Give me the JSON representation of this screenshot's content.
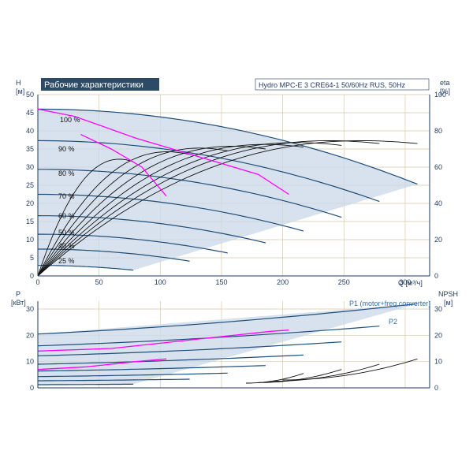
{
  "header": {
    "title": "Рабочие характеристики",
    "subtitle": "Hydro MPC-E 3 CRE64-1 50/60Hz RUS, 50Hz"
  },
  "colors": {
    "curve": "#1f4e79",
    "efficiency": "#111111",
    "npsh": "#111111",
    "highlight": "#ff00ff",
    "area": "#c9d8e8",
    "grid": "#d8c9a8",
    "axis": "#1f3a5f"
  },
  "chart_data": [
    {
      "type": "line",
      "name": "head-chart",
      "ylabel_left": "H",
      "ylabel_left_unit": "[м]",
      "ylabel_right": "eta",
      "ylabel_right_unit": "[%]",
      "xlabel": "Q [м³/ч]",
      "x_ticks": [
        "0",
        "50",
        "100",
        "150",
        "200",
        "250",
        "300"
      ],
      "y_ticks": [
        "0",
        "5",
        "10",
        "15",
        "20",
        "25",
        "30",
        "35",
        "40",
        "45",
        "50"
      ],
      "y2_ticks": [
        "0",
        "20",
        "40",
        "60",
        "80",
        "100"
      ],
      "xlim": [
        0,
        320
      ],
      "ylim": [
        0,
        50
      ],
      "y2lim": [
        0,
        100
      ],
      "grid": true,
      "speed_labels": [
        "100 %",
        "90 %",
        "80 %",
        "70 %",
        "60 %",
        "50 %",
        "40 %",
        "25 %"
      ],
      "speed_curves": [
        {
          "label": "100 %",
          "qmax": 310,
          "h0": 46
        },
        {
          "label": "90 %",
          "qmax": 279,
          "h0": 37.3
        },
        {
          "label": "80 %",
          "qmax": 248,
          "h0": 29.4
        },
        {
          "label": "70 %",
          "qmax": 217,
          "h0": 22.5
        },
        {
          "label": "60 %",
          "qmax": 186,
          "h0": 16.6
        },
        {
          "label": "50 %",
          "qmax": 155,
          "h0": 11.5
        },
        {
          "label": "40 %",
          "qmax": 124,
          "h0": 7.4
        },
        {
          "label": "25 %",
          "qmax": 78,
          "h0": 2.9
        }
      ],
      "highlight_curves": [
        {
          "points": [
            [
              0,
              46
            ],
            [
              30,
              44
            ],
            [
              80,
              38
            ],
            [
              140,
              32
            ],
            [
              180,
              28
            ],
            [
              205,
              22.5
            ]
          ]
        },
        {
          "points": [
            [
              35,
              39
            ],
            [
              60,
              35
            ],
            [
              85,
              30
            ],
            [
              105,
              22
            ]
          ]
        }
      ],
      "efficiency_curves": [
        {
          "qmax": 310,
          "eta_max": 73
        },
        {
          "qmax": 279,
          "eta_max": 73
        },
        {
          "qmax": 248,
          "eta_max": 72
        },
        {
          "qmax": 217,
          "eta_max": 71
        },
        {
          "qmax": 186,
          "eta_max": 70
        },
        {
          "qmax": 155,
          "eta_max": 69
        },
        {
          "qmax": 124,
          "eta_max": 67
        },
        {
          "qmax": 78,
          "eta_max": 63
        }
      ]
    },
    {
      "type": "line",
      "name": "power-chart",
      "ylabel_left": "P",
      "ylabel_left_unit": "[кВт]",
      "ylabel_right": "NPSH",
      "ylabel_right_unit": "[м]",
      "y_ticks": [
        "0",
        "10",
        "20",
        "30"
      ],
      "y2_ticks": [
        "0",
        "10",
        "20",
        "30"
      ],
      "xlim": [
        0,
        320
      ],
      "ylim": [
        0,
        33
      ],
      "y2lim": [
        0,
        33
      ],
      "grid": true,
      "legend": [
        "P1 (motor+freq.converter)",
        "P2"
      ],
      "p1_curves": [
        {
          "qmax": 310,
          "p0": 20.5,
          "p1": 32
        },
        {
          "qmax": 279,
          "p0": 16.0,
          "p1": 23.5
        },
        {
          "qmax": 248,
          "p0": 12.2,
          "p1": 17.5
        },
        {
          "qmax": 217,
          "p0": 9.0,
          "p1": 12.5
        },
        {
          "qmax": 186,
          "p0": 6.4,
          "p1": 8.5
        },
        {
          "qmax": 155,
          "p0": 4.3,
          "p1": 5.6
        },
        {
          "qmax": 124,
          "p0": 2.7,
          "p1": 3.3
        },
        {
          "qmax": 78,
          "p0": 1.2,
          "p1": 1.4
        }
      ],
      "npsh_curves": [
        {
          "q0": 200,
          "q1": 310,
          "n0": 3,
          "n1": 11
        },
        {
          "q0": 190,
          "q1": 279,
          "n0": 2.5,
          "n1": 9
        },
        {
          "q0": 180,
          "q1": 248,
          "n0": 2,
          "n1": 7
        },
        {
          "q0": 170,
          "q1": 217,
          "n0": 1.8,
          "n1": 5.5
        }
      ],
      "highlight_curves": [
        {
          "points": [
            [
              0,
              14
            ],
            [
              60,
              15
            ],
            [
              120,
              18
            ],
            [
              190,
              21.5
            ],
            [
              205,
              22
            ]
          ]
        },
        {
          "points": [
            [
              0,
              7
            ],
            [
              40,
              8
            ],
            [
              80,
              10
            ],
            [
              105,
              11
            ]
          ]
        }
      ]
    }
  ]
}
